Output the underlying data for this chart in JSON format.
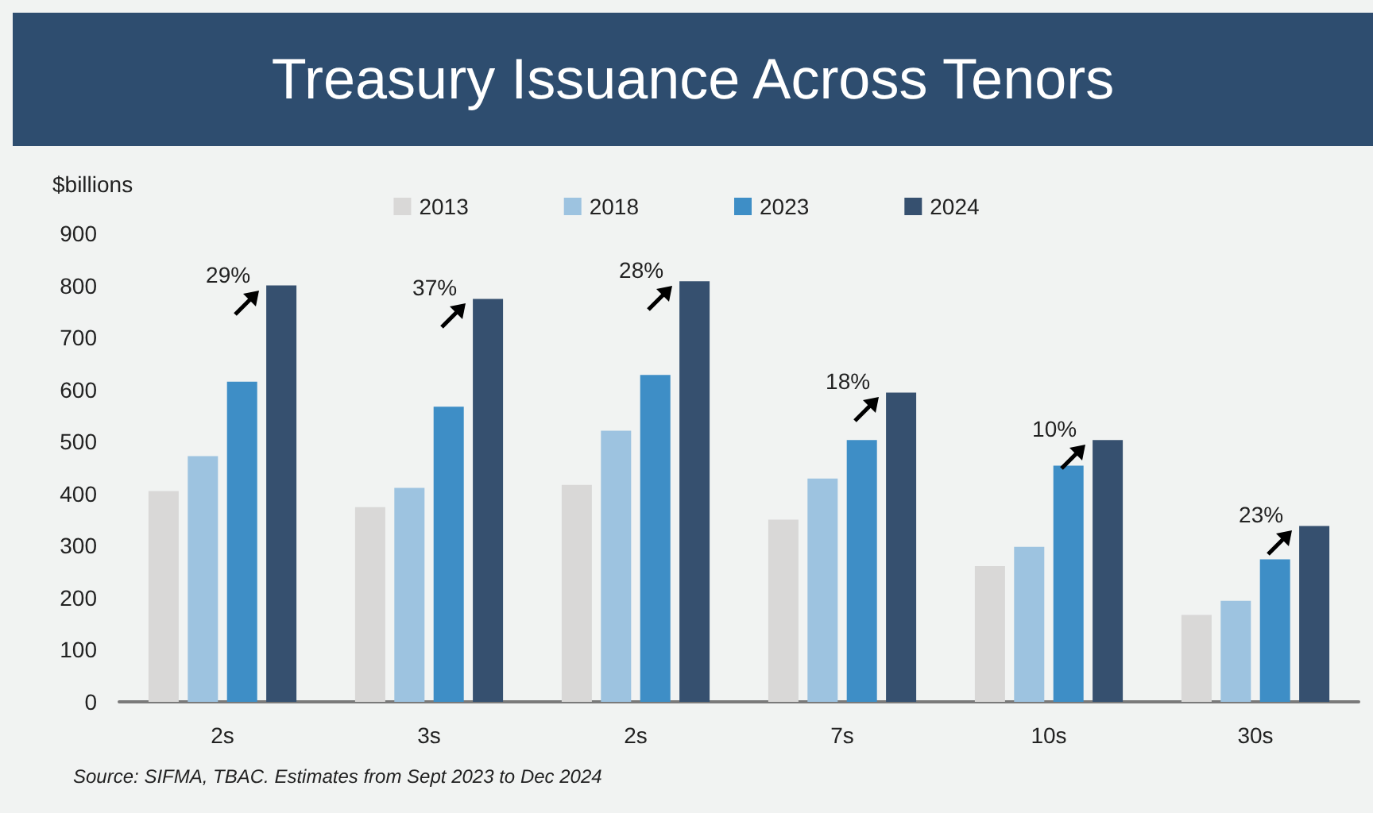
{
  "chart_data": {
    "type": "bar",
    "title": "Treasury Issuance Across Tenors",
    "ylabel": "$billions",
    "categories": [
      "2s",
      "3s",
      "2s",
      "7s",
      "10s",
      "30s"
    ],
    "series": [
      {
        "name": "2013",
        "color": "#d9d8d7",
        "values": [
          405,
          374,
          417,
          350,
          261,
          167
        ]
      },
      {
        "name": "2018",
        "color": "#9dc3e0",
        "values": [
          472,
          411,
          521,
          429,
          298,
          194
        ]
      },
      {
        "name": "2023",
        "color": "#3e8ec6",
        "values": [
          615,
          567,
          628,
          503,
          454,
          274
        ]
      },
      {
        "name": "2024",
        "color": "#36506f",
        "values": [
          800,
          774,
          808,
          594,
          503,
          338
        ]
      }
    ],
    "ylim": [
      0,
      900
    ],
    "yticks": [
      0,
      100,
      200,
      300,
      400,
      500,
      600,
      700,
      800,
      900
    ],
    "grid": false,
    "legend": "top",
    "annotations": [
      "29%",
      "37%",
      "28%",
      "18%",
      "10%",
      "23%",
      "Source: SIFMA, TBAC. Estimates from Sept 2023 to Dec 2024"
    ]
  }
}
